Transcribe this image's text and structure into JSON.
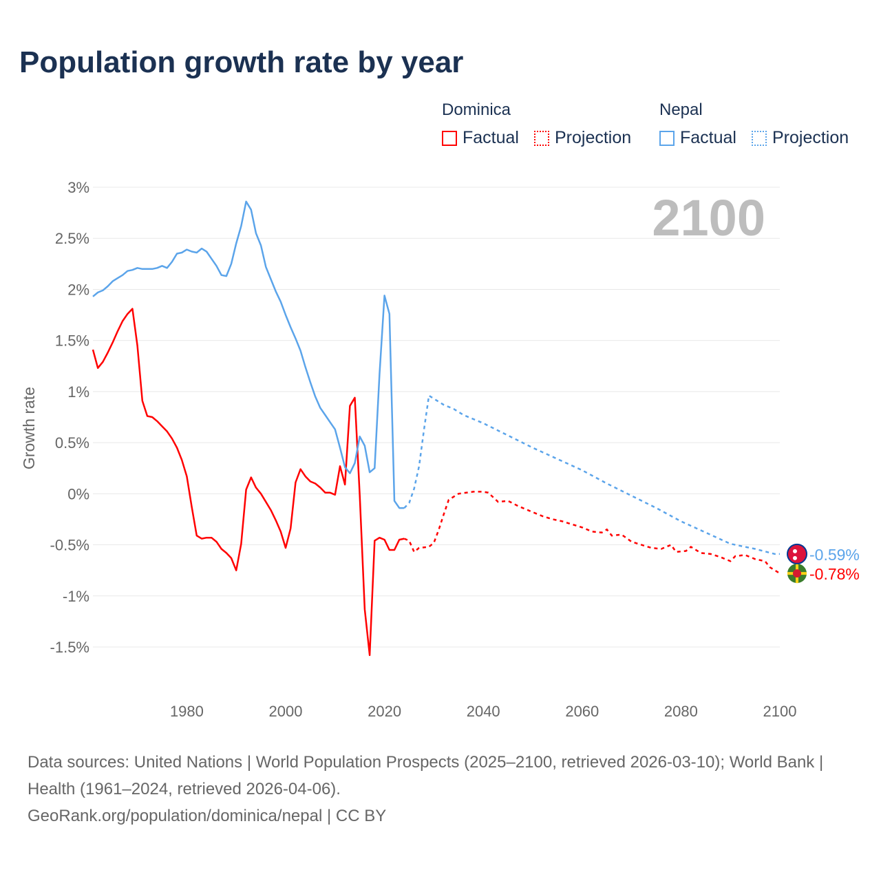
{
  "chart_data": {
    "type": "line",
    "title": "Population growth rate by year",
    "ylabel": "Growth rate",
    "xlabel": "",
    "xlim": [
      1961,
      2100
    ],
    "ylim": [
      -1.5,
      3
    ],
    "yticks": [
      {
        "v": 3,
        "label": "3%"
      },
      {
        "v": 2.5,
        "label": "2.5%"
      },
      {
        "v": 2,
        "label": "2%"
      },
      {
        "v": 1.5,
        "label": "1.5%"
      },
      {
        "v": 1,
        "label": "1%"
      },
      {
        "v": 0.5,
        "label": "0.5%"
      },
      {
        "v": 0,
        "label": "0%"
      },
      {
        "v": -0.5,
        "label": "-0.5%"
      },
      {
        "v": -1,
        "label": "-1%"
      },
      {
        "v": -1.5,
        "label": "-1.5%"
      }
    ],
    "xticks": [
      {
        "v": 1980,
        "label": "1980"
      },
      {
        "v": 2000,
        "label": "2000"
      },
      {
        "v": 2020,
        "label": "2020"
      },
      {
        "v": 2040,
        "label": "2040"
      },
      {
        "v": 2060,
        "label": "2060"
      },
      {
        "v": 2080,
        "label": "2080"
      },
      {
        "v": 2100,
        "label": "2100"
      }
    ],
    "year_label": "2100",
    "legend": {
      "placement": "top-right",
      "groups": [
        {
          "name": "Dominica",
          "factual": "Factual",
          "projection": "Projection"
        },
        {
          "name": "Nepal",
          "factual": "Factual",
          "projection": "Projection"
        }
      ]
    },
    "series": [
      {
        "name": "Dominica",
        "color": "#ff0000",
        "end_label": "-0.78%",
        "factual": [
          [
            1961,
            1.41
          ],
          [
            1962,
            1.23
          ],
          [
            1963,
            1.29
          ],
          [
            1964,
            1.38
          ],
          [
            1965,
            1.48
          ],
          [
            1966,
            1.59
          ],
          [
            1967,
            1.69
          ],
          [
            1968,
            1.76
          ],
          [
            1969,
            1.81
          ],
          [
            1970,
            1.45
          ],
          [
            1971,
            0.91
          ],
          [
            1972,
            0.76
          ],
          [
            1973,
            0.75
          ],
          [
            1974,
            0.71
          ],
          [
            1975,
            0.66
          ],
          [
            1976,
            0.61
          ],
          [
            1977,
            0.54
          ],
          [
            1978,
            0.45
          ],
          [
            1979,
            0.33
          ],
          [
            1980,
            0.17
          ],
          [
            1981,
            -0.13
          ],
          [
            1982,
            -0.41
          ],
          [
            1983,
            -0.44
          ],
          [
            1984,
            -0.43
          ],
          [
            1985,
            -0.43
          ],
          [
            1986,
            -0.47
          ],
          [
            1987,
            -0.54
          ],
          [
            1988,
            -0.58
          ],
          [
            1989,
            -0.63
          ],
          [
            1990,
            -0.75
          ],
          [
            1991,
            -0.49
          ],
          [
            1992,
            0.04
          ],
          [
            1993,
            0.16
          ],
          [
            1994,
            0.06
          ],
          [
            1995,
            0.0
          ],
          [
            1996,
            -0.08
          ],
          [
            1997,
            -0.16
          ],
          [
            1998,
            -0.26
          ],
          [
            1999,
            -0.37
          ],
          [
            2000,
            -0.53
          ],
          [
            2001,
            -0.34
          ],
          [
            2002,
            0.11
          ],
          [
            2003,
            0.24
          ],
          [
            2004,
            0.17
          ],
          [
            2005,
            0.12
          ],
          [
            2006,
            0.1
          ],
          [
            2007,
            0.06
          ],
          [
            2008,
            0.01
          ],
          [
            2009,
            0.01
          ],
          [
            2010,
            -0.01
          ],
          [
            2011,
            0.27
          ],
          [
            2012,
            0.09
          ],
          [
            2013,
            0.86
          ],
          [
            2014,
            0.94
          ],
          [
            2015,
            -0.02
          ],
          [
            2016,
            -1.13
          ],
          [
            2017,
            -1.58
          ],
          [
            2018,
            -0.46
          ],
          [
            2019,
            -0.43
          ],
          [
            2020,
            -0.45
          ],
          [
            2021,
            -0.55
          ],
          [
            2022,
            -0.55
          ],
          [
            2023,
            -0.45
          ],
          [
            2024,
            -0.44
          ]
        ],
        "projection": [
          [
            2024,
            -0.44
          ],
          [
            2025,
            -0.46
          ],
          [
            2026,
            -0.57
          ],
          [
            2027,
            -0.53
          ],
          [
            2029,
            -0.52
          ],
          [
            2030,
            -0.48
          ],
          [
            2031,
            -0.35
          ],
          [
            2032,
            -0.2
          ],
          [
            2033,
            -0.06
          ],
          [
            2035,
            0.0
          ],
          [
            2038,
            0.02
          ],
          [
            2040,
            0.02
          ],
          [
            2041,
            0.01
          ],
          [
            2043,
            -0.08
          ],
          [
            2045,
            -0.07
          ],
          [
            2047,
            -0.12
          ],
          [
            2050,
            -0.18
          ],
          [
            2052,
            -0.22
          ],
          [
            2054,
            -0.25
          ],
          [
            2056,
            -0.27
          ],
          [
            2058,
            -0.3
          ],
          [
            2060,
            -0.33
          ],
          [
            2062,
            -0.37
          ],
          [
            2064,
            -0.38
          ],
          [
            2065,
            -0.35
          ],
          [
            2066,
            -0.41
          ],
          [
            2068,
            -0.4
          ],
          [
            2070,
            -0.47
          ],
          [
            2072,
            -0.5
          ],
          [
            2074,
            -0.53
          ],
          [
            2076,
            -0.54
          ],
          [
            2078,
            -0.5
          ],
          [
            2079,
            -0.57
          ],
          [
            2081,
            -0.56
          ],
          [
            2082,
            -0.52
          ],
          [
            2084,
            -0.58
          ],
          [
            2086,
            -0.59
          ],
          [
            2088,
            -0.62
          ],
          [
            2090,
            -0.66
          ],
          [
            2091,
            -0.61
          ],
          [
            2093,
            -0.6
          ],
          [
            2095,
            -0.64
          ],
          [
            2097,
            -0.66
          ],
          [
            2098,
            -0.72
          ],
          [
            2100,
            -0.78
          ]
        ]
      },
      {
        "name": "Nepal",
        "color": "#5ba4ea",
        "end_label": "-0.59%",
        "factual": [
          [
            1961,
            1.93
          ],
          [
            1962,
            1.97
          ],
          [
            1963,
            1.99
          ],
          [
            1964,
            2.03
          ],
          [
            1965,
            2.08
          ],
          [
            1966,
            2.11
          ],
          [
            1967,
            2.14
          ],
          [
            1968,
            2.18
          ],
          [
            1969,
            2.19
          ],
          [
            1970,
            2.21
          ],
          [
            1971,
            2.2
          ],
          [
            1972,
            2.2
          ],
          [
            1973,
            2.2
          ],
          [
            1974,
            2.21
          ],
          [
            1975,
            2.23
          ],
          [
            1976,
            2.21
          ],
          [
            1977,
            2.27
          ],
          [
            1978,
            2.35
          ],
          [
            1979,
            2.36
          ],
          [
            1980,
            2.39
          ],
          [
            1981,
            2.37
          ],
          [
            1982,
            2.36
          ],
          [
            1983,
            2.4
          ],
          [
            1984,
            2.37
          ],
          [
            1985,
            2.3
          ],
          [
            1986,
            2.23
          ],
          [
            1987,
            2.14
          ],
          [
            1988,
            2.13
          ],
          [
            1989,
            2.25
          ],
          [
            1990,
            2.45
          ],
          [
            1991,
            2.62
          ],
          [
            1992,
            2.86
          ],
          [
            1993,
            2.78
          ],
          [
            1994,
            2.55
          ],
          [
            1995,
            2.43
          ],
          [
            1996,
            2.22
          ],
          [
            1997,
            2.1
          ],
          [
            1998,
            1.98
          ],
          [
            1999,
            1.88
          ],
          [
            2000,
            1.75
          ],
          [
            2001,
            1.63
          ],
          [
            2002,
            1.52
          ],
          [
            2003,
            1.4
          ],
          [
            2004,
            1.24
          ],
          [
            2005,
            1.09
          ],
          [
            2006,
            0.95
          ],
          [
            2007,
            0.84
          ],
          [
            2008,
            0.77
          ],
          [
            2009,
            0.7
          ],
          [
            2010,
            0.63
          ],
          [
            2011,
            0.45
          ],
          [
            2012,
            0.26
          ],
          [
            2013,
            0.2
          ],
          [
            2014,
            0.3
          ],
          [
            2015,
            0.56
          ],
          [
            2016,
            0.47
          ],
          [
            2017,
            0.21
          ],
          [
            2018,
            0.25
          ],
          [
            2019,
            1.17
          ],
          [
            2020,
            1.94
          ],
          [
            2021,
            1.76
          ],
          [
            2022,
            -0.07
          ],
          [
            2023,
            -0.14
          ],
          [
            2024,
            -0.14
          ]
        ],
        "projection": [
          [
            2024,
            -0.14
          ],
          [
            2025,
            -0.09
          ],
          [
            2026,
            0.05
          ],
          [
            2027,
            0.27
          ],
          [
            2028,
            0.63
          ],
          [
            2029,
            0.96
          ],
          [
            2030,
            0.93
          ],
          [
            2032,
            0.87
          ],
          [
            2034,
            0.83
          ],
          [
            2036,
            0.77
          ],
          [
            2040,
            0.69
          ],
          [
            2045,
            0.57
          ],
          [
            2050,
            0.45
          ],
          [
            2055,
            0.34
          ],
          [
            2060,
            0.23
          ],
          [
            2065,
            0.1
          ],
          [
            2070,
            -0.02
          ],
          [
            2075,
            -0.14
          ],
          [
            2080,
            -0.27
          ],
          [
            2085,
            -0.38
          ],
          [
            2090,
            -0.49
          ],
          [
            2095,
            -0.54
          ],
          [
            2099,
            -0.59
          ],
          [
            2100,
            -0.59
          ]
        ]
      }
    ]
  },
  "footer": {
    "line1": "Data sources: United Nations | World Population Prospects (2025–2100, retrieved 2026-03-10); World Bank | Health (1961–2024, retrieved 2026-04-06).",
    "line2": "GeoRank.org/population/dominica/nepal | CC BY"
  }
}
